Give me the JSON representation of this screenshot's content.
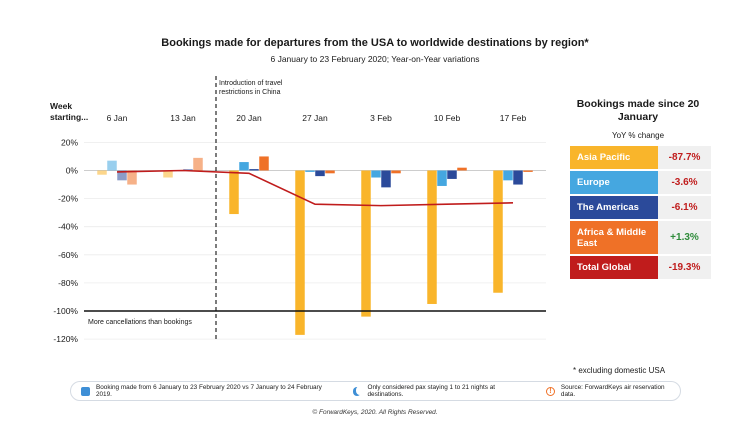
{
  "header": {
    "title": "Bookings made for departures from the USA to worldwide destinations by region*",
    "subtitle": "6 January to 23 February 2020; Year-on-Year variations"
  },
  "week_label": "Week starting...",
  "annotations": {
    "intro": "Introduction of travel restrictions in China",
    "more_cancellations": "More cancellations than bookings"
  },
  "chart_data": {
    "type": "bar",
    "categories": [
      "6 Jan",
      "13 Jan",
      "20 Jan",
      "27 Jan",
      "3 Feb",
      "10 Feb",
      "17 Feb"
    ],
    "series": [
      {
        "name": "Asia Pacific",
        "values": [
          -3,
          -5,
          -31,
          -117,
          -104,
          -95,
          -87
        ],
        "color": "#F9B52B"
      },
      {
        "name": "Europe",
        "values": [
          7,
          0,
          6,
          -1,
          -5,
          -11,
          -7
        ],
        "color": "#45A7E0"
      },
      {
        "name": "The Americas",
        "values": [
          -7,
          1,
          1,
          -4,
          -12,
          -6,
          -10
        ],
        "color": "#2B4A9A"
      },
      {
        "name": "Africa & Middle East",
        "values": [
          -10,
          9,
          10,
          -2,
          -2,
          2,
          -1
        ],
        "color": "#EF7127"
      }
    ],
    "total_line": {
      "name": "Total Global",
      "values": [
        -1,
        0,
        -2,
        -24,
        -25,
        -24,
        -23
      ],
      "color": "#C01C1C"
    },
    "faded_categories": [
      "6 Jan",
      "13 Jan"
    ],
    "y_ticks": [
      "20%",
      "0%",
      "-20%",
      "-40%",
      "-60%",
      "-80%",
      "-100%",
      "-120%"
    ],
    "y_tick_values": [
      20,
      0,
      -20,
      -40,
      -60,
      -80,
      -100,
      -120
    ],
    "ylim": [
      -122,
      24
    ],
    "reference_line": -100,
    "vertical_marker_after": "13 Jan"
  },
  "side_panel": {
    "title": "Bookings made since 20 January",
    "subtitle": "YoY % change",
    "rows": [
      {
        "label": "Asia Pacific",
        "value": "-87.7%",
        "color": "#F9B52B",
        "value_color": "#C01C1C"
      },
      {
        "label": "Europe",
        "value": "-3.6%",
        "color": "#45A7E0",
        "value_color": "#C01C1C"
      },
      {
        "label": "The Americas",
        "value": "-6.1%",
        "color": "#2B4A9A",
        "value_color": "#C01C1C"
      },
      {
        "label": "Africa & Middle East",
        "value": "+1.3%",
        "color": "#EF7127",
        "value_color": "#2E8B3A"
      },
      {
        "label": "Total Global",
        "value": "-19.3%",
        "color": "#C01C1C",
        "value_color": "#C01C1C"
      }
    ]
  },
  "footnote": "* excluding domestic USA",
  "legend": [
    {
      "icon": "calendar-icon",
      "text": "Booking made from 6 January to 23 February 2020 vs 7 January to 24 February 2019."
    },
    {
      "icon": "moon-icon",
      "text": "Only considered pax staying 1 to 21 nights at destinations."
    },
    {
      "icon": "info-icon",
      "text": "Source: ForwardKeys air reservation data."
    }
  ],
  "copyright": "© ForwardKeys, 2020. All Rights Reserved."
}
